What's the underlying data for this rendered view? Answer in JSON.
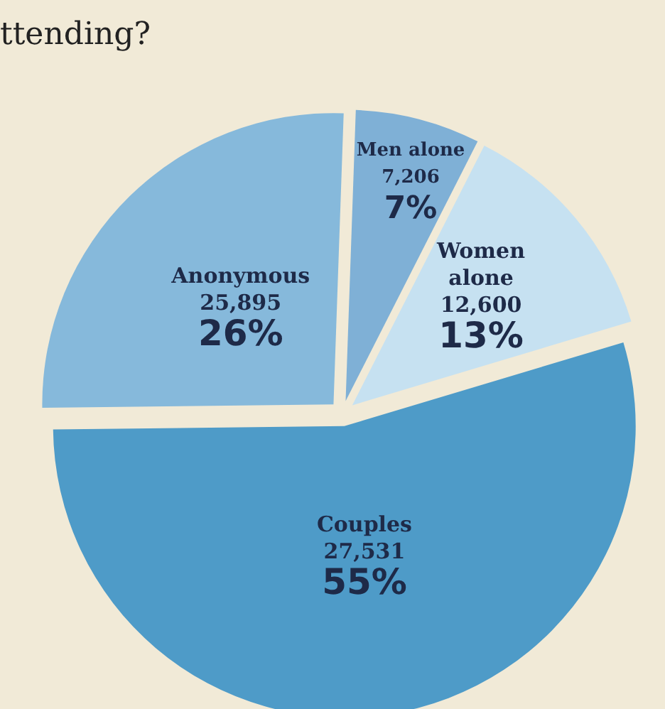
{
  "chart_data": {
    "type": "pie",
    "title": "ttending?",
    "categories": [
      "Men alone",
      "Women alone",
      "Couples",
      "Anonymous"
    ],
    "values": [
      7,
      13,
      55,
      26
    ],
    "value_labels": [
      "7,206\n7%",
      "12,600\n13%",
      "27,531\n55%",
      "25,895\n26%"
    ],
    "colors": [
      "#7fb0d6",
      "#c6e1f1",
      "#4e9bc8",
      "#86b9db"
    ]
  }
}
